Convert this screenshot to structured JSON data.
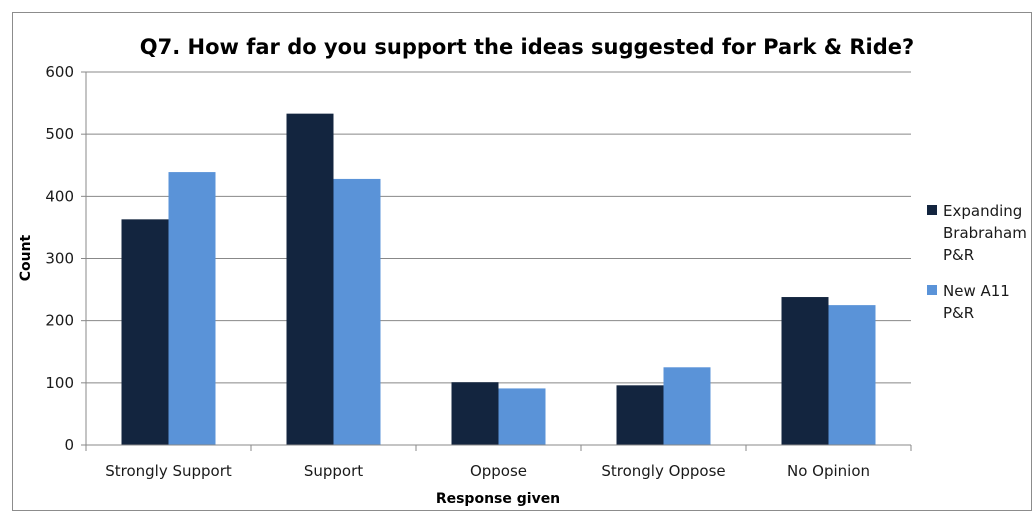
{
  "chart_data": {
    "type": "bar",
    "title": "Q7. How far do you support the ideas suggested for Park & Ride?",
    "xlabel": "Response given",
    "ylabel": "Count",
    "categories": [
      "Strongly Support",
      "Support",
      "Oppose",
      "Strongly Oppose",
      "No Opinion"
    ],
    "series": [
      {
        "name": "Expanding Brabraham P&R",
        "legend_lines": [
          "Expanding",
          "Brabraham",
          "P&R"
        ],
        "color": "#13253f",
        "values": [
          363,
          533,
          101,
          96,
          238
        ]
      },
      {
        "name": "New A11 P&R",
        "legend_lines": [
          "New A11",
          "P&R"
        ],
        "color": "#5a93d8",
        "values": [
          439,
          428,
          91,
          125,
          225
        ]
      }
    ],
    "ylim": [
      0,
      600
    ],
    "yticks": [
      0,
      100,
      200,
      300,
      400,
      500,
      600
    ],
    "grid": true,
    "legend_position": "right",
    "gridline_color": "#888888"
  }
}
